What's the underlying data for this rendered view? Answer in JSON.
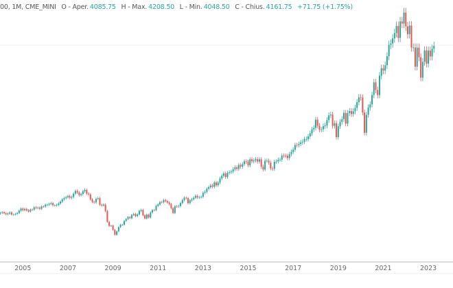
{
  "legend": {
    "symbol": "00, 1M, CME_MINI",
    "open_label": "O - Aper.",
    "open": "4085.75",
    "high_label": "H - Max.",
    "high": "4208.50",
    "low_label": "L - Min.",
    "low": "4048.50",
    "close_label": "C - Chius.",
    "close": "4161.75",
    "change": "+71.75 (+1.75%)"
  },
  "colors": {
    "up": "#26a69a",
    "down": "#ef5350",
    "text": "#666666",
    "grid": "#eeeeee"
  },
  "chart_data": {
    "type": "candlestick",
    "interval": "1M",
    "start": "2004-01",
    "x_ticks": [
      "2005",
      "2007",
      "2009",
      "2011",
      "2013",
      "2015",
      "2017",
      "2019",
      "2021",
      "2023"
    ],
    "ylim": [
      500,
      5000
    ],
    "grid": false,
    "close": [
      1131,
      1145,
      1126,
      1107,
      1121,
      1141,
      1102,
      1104,
      1115,
      1130,
      1174,
      1212,
      1181,
      1204,
      1180,
      1157,
      1192,
      1191,
      1234,
      1220,
      1229,
      1207,
      1249,
      1248,
      1280,
      1281,
      1295,
      1311,
      1270,
      1270,
      1277,
      1304,
      1336,
      1378,
      1401,
      1418,
      1438,
      1407,
      1421,
      1482,
      1531,
      1503,
      1455,
      1474,
      1527,
      1549,
      1481,
      1468,
      1378,
      1331,
      1323,
      1386,
      1400,
      1280,
      1267,
      1283,
      1166,
      969,
      896,
      903,
      826,
      735,
      798,
      873,
      919,
      919,
      987,
      1021,
      1057,
      1036,
      1096,
      1115,
      1074,
      1104,
      1169,
      1187,
      1089,
      1031,
      1102,
      1049,
      1141,
      1183,
      1181,
      1258,
      1286,
      1327,
      1326,
      1364,
      1345,
      1321,
      1292,
      1219,
      1131,
      1253,
      1247,
      1258,
      1312,
      1366,
      1408,
      1398,
      1310,
      1362,
      1379,
      1407,
      1441,
      1412,
      1416,
      1426,
      1498,
      1515,
      1569,
      1598,
      1631,
      1606,
      1686,
      1633,
      1682,
      1757,
      1806,
      1848,
      1783,
      1859,
      1872,
      1884,
      1924,
      1960,
      1931,
      2003,
      1972,
      2018,
      2068,
      2059,
      1995,
      2105,
      2068,
      2086,
      2107,
      2063,
      2104,
      1972,
      1920,
      2079,
      2080,
      2044,
      1940,
      1932,
      2060,
      2065,
      2097,
      2099,
      2174,
      2171,
      2168,
      2126,
      2199,
      2239,
      2279,
      2364,
      2363,
      2384,
      2412,
      2423,
      2470,
      2472,
      2519,
      2575,
      2648,
      2674,
      2824,
      2714,
      2641,
      2648,
      2705,
      2718,
      2816,
      2902,
      2914,
      2711,
      2760,
      2507,
      2704,
      2784,
      2834,
      2946,
      2752,
      2942,
      2980,
      2926,
      2977,
      3038,
      3141,
      3231,
      3226,
      2954,
      2585,
      2912,
      3044,
      3100,
      3271,
      3500,
      3363,
      3270,
      3622,
      3756,
      3714,
      3811,
      3973,
      4181,
      4204,
      4297,
      4395,
      4523,
      4307,
      4605,
      4567,
      4766,
      4516,
      4374,
      4530,
      4132,
      4132,
      3785,
      4130,
      3955,
      3585,
      3872,
      4080,
      3840,
      4077,
      3970,
      4109,
      4161
    ]
  }
}
